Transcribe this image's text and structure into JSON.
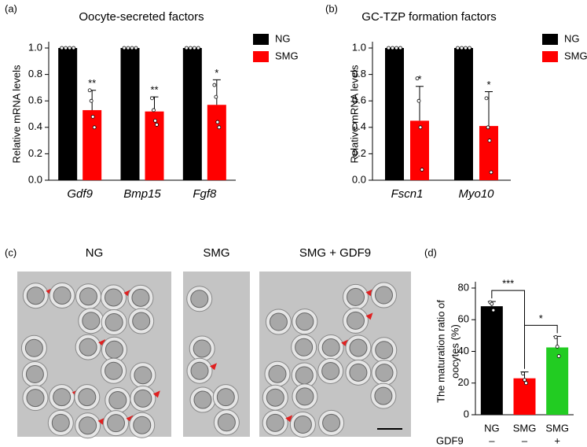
{
  "chart_data": [
    {
      "type": "bar",
      "panel_label": "(a)",
      "title": "Oocyte-secreted factors",
      "y_label": [
        "Relative mRNA levels"
      ],
      "categories": [
        "Gdf9",
        "Bmp15",
        "Fgf8"
      ],
      "ylim": [
        0,
        1
      ],
      "yticks": [
        {
          "value": 0,
          "label": "0.0"
        },
        0.2,
        0.4,
        0.6,
        0.8,
        {
          "value": 1,
          "label": "1.0"
        }
      ],
      "series": [
        {
          "name": "NG",
          "color": "#000000",
          "values": [
            1,
            1,
            1
          ],
          "points": [
            [
              1,
              1,
              1,
              1
            ],
            [
              1,
              1,
              1,
              1
            ],
            [
              1,
              1,
              1,
              1
            ]
          ]
        },
        {
          "name": "SMG",
          "color": "#ff0000",
          "values": [
            0.53,
            0.52,
            0.57
          ],
          "errors": [
            0.15,
            0.11,
            0.19
          ],
          "points": [
            [
              0.68,
              0.6,
              0.48,
              0.4
            ],
            [
              0.62,
              0.53,
              0.45,
              0.42
            ],
            [
              0.72,
              0.63,
              0.44,
              0.4
            ]
          ],
          "significance": [
            "**",
            "**",
            "*"
          ]
        }
      ]
    },
    {
      "type": "bar",
      "panel_label": "(b)",
      "title": "GC-TZP formation factors",
      "y_label": [
        "Relative mRNA levels"
      ],
      "categories": [
        "Fscn1",
        "Myo10"
      ],
      "ylim": [
        0,
        1
      ],
      "yticks": [
        {
          "value": 0,
          "label": "0.0"
        },
        0.2,
        0.4,
        0.6,
        0.8,
        {
          "value": 1,
          "label": "1.0"
        }
      ],
      "series": [
        {
          "name": "NG",
          "color": "#000000",
          "values": [
            1,
            1
          ],
          "points": [
            [
              1,
              1,
              1,
              1
            ],
            [
              1,
              1,
              1,
              1
            ]
          ]
        },
        {
          "name": "SMG",
          "color": "#ff0000",
          "values": [
            0.45,
            0.41
          ],
          "errors": [
            0.26,
            0.26
          ],
          "points": [
            [
              0.77,
              0.6,
              0.4,
              0.08
            ],
            [
              0.62,
              0.4,
              0.3,
              0.06
            ]
          ],
          "significance": [
            "*",
            "*"
          ]
        }
      ]
    },
    {
      "type": "bar",
      "panel_label": "(d)",
      "y_label": [
        "The maturation ratio of",
        "oocytes (%)"
      ],
      "categories": [
        "NG",
        "SMG",
        "SMG"
      ],
      "colors": [
        "#000000",
        "#ff0000",
        "#22cc22"
      ],
      "values": [
        68.5,
        23,
        42.5
      ],
      "errors": [
        3,
        4,
        7
      ],
      "points": [
        [
          71,
          70,
          66
        ],
        [
          26,
          22,
          20
        ],
        [
          49,
          43,
          37
        ]
      ],
      "comparisons": [
        "***",
        "*"
      ],
      "treatment": {
        "label": "GDF9",
        "values": [
          "–",
          "–",
          "+"
        ]
      },
      "ylim": [
        0,
        80
      ],
      "yticks": [
        0,
        20,
        40,
        60,
        80
      ]
    }
  ],
  "images": {
    "panel_label": "(c)",
    "titles": [
      "NG",
      "SMG",
      "SMG + GDF9"
    ]
  }
}
